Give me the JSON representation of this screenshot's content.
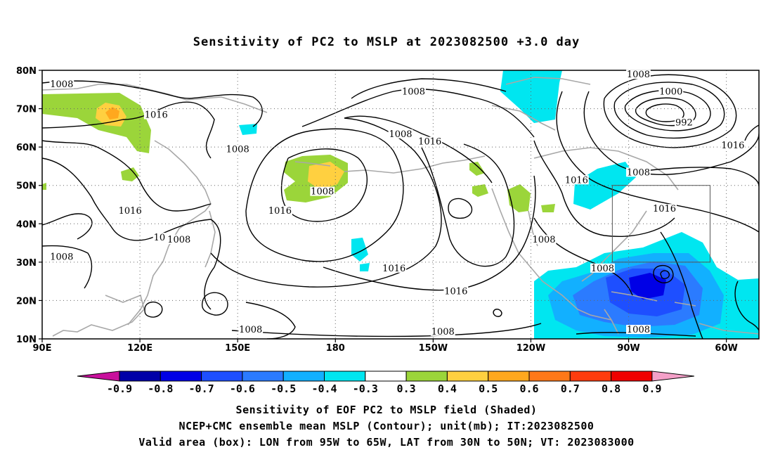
{
  "chart_data": {
    "type": "contour",
    "title": "Sensitivity of PC2 to MSLP at 2023082500 +3.0 day",
    "map": {
      "lon_range": [
        90,
        310
      ],
      "lat_range": [
        10,
        80
      ],
      "x_ticks": [
        {
          "lon": 90,
          "label": "90E"
        },
        {
          "lon": 120,
          "label": "120E"
        },
        {
          "lon": 150,
          "label": "150E"
        },
        {
          "lon": 180,
          "label": "180"
        },
        {
          "lon": 210,
          "label": "150W"
        },
        {
          "lon": 240,
          "label": "120W"
        },
        {
          "lon": 270,
          "label": "90W"
        },
        {
          "lon": 300,
          "label": "60W"
        }
      ],
      "y_ticks": [
        {
          "lat": 10,
          "label": "10N"
        },
        {
          "lat": 20,
          "label": "20N"
        },
        {
          "lat": 30,
          "label": "30N"
        },
        {
          "lat": 40,
          "label": "40N"
        },
        {
          "lat": 50,
          "label": "50N"
        },
        {
          "lat": 60,
          "label": "60N"
        },
        {
          "lat": 70,
          "label": "70N"
        },
        {
          "lat": 80,
          "label": "80N"
        }
      ],
      "grid": "dotted",
      "valid_box": {
        "lon": [
          265,
          295
        ],
        "lat": [
          30,
          50
        ]
      }
    },
    "contour_labels": [
      {
        "text": "1008",
        "lon": 96,
        "lat": 76
      },
      {
        "text": "1016",
        "lon": 125,
        "lat": 68
      },
      {
        "text": "1008",
        "lon": 150,
        "lat": 59
      },
      {
        "text": "1016",
        "lon": 117,
        "lat": 43
      },
      {
        "text": "10",
        "lon": 126,
        "lat": 36
      },
      {
        "text": "1008",
        "lon": 132,
        "lat": 35.5
      },
      {
        "text": "1008",
        "lon": 96,
        "lat": 31
      },
      {
        "text": "1008",
        "lon": 176,
        "lat": 48
      },
      {
        "text": "1016",
        "lon": 163,
        "lat": 43
      },
      {
        "text": "1008",
        "lon": 204,
        "lat": 74
      },
      {
        "text": "1008",
        "lon": 200,
        "lat": 63
      },
      {
        "text": "1016",
        "lon": 209,
        "lat": 61
      },
      {
        "text": "1016",
        "lon": 198,
        "lat": 28
      },
      {
        "text": "1016",
        "lon": 217,
        "lat": 22
      },
      {
        "text": "1008",
        "lon": 154,
        "lat": 12
      },
      {
        "text": "1008",
        "lon": 213,
        "lat": 11.5
      },
      {
        "text": "1016",
        "lon": 254,
        "lat": 51
      },
      {
        "text": "1008",
        "lon": 244,
        "lat": 35.5
      },
      {
        "text": "1008",
        "lon": 262,
        "lat": 28
      },
      {
        "text": "1008",
        "lon": 273,
        "lat": 78.5
      },
      {
        "text": "1000",
        "lon": 283,
        "lat": 74
      },
      {
        "text": "992",
        "lon": 287,
        "lat": 66
      },
      {
        "text": "1016",
        "lon": 302,
        "lat": 60
      },
      {
        "text": "1008",
        "lon": 273,
        "lat": 53
      },
      {
        "text": "1016",
        "lon": 281,
        "lat": 43.5
      },
      {
        "text": "1008",
        "lon": 273,
        "lat": 12
      }
    ],
    "colorbar": {
      "labels": [
        "-0.9",
        "-0.8",
        "-0.7",
        "-0.6",
        "-0.5",
        "-0.4",
        "-0.3",
        "0.3",
        "0.4",
        "0.5",
        "0.6",
        "0.7",
        "0.8",
        "0.9"
      ],
      "colors": [
        "#0000A8",
        "#0000E6",
        "#1E4FFF",
        "#2B7BFF",
        "#12B0FF",
        "#00E6F0",
        "#FFFFFF",
        "#9BD53A",
        "#FFD040",
        "#FFA81E",
        "#FF7818",
        "#FF3C0E",
        "#F00000"
      ],
      "low_color": "#C8109C",
      "high_color": "#F4A0C8"
    }
  },
  "footer": {
    "line1": "Sensitivity of EOF PC2 to MSLP field (Shaded)",
    "line2": "NCEP+CMC ensemble mean MSLP (Contour); unit(mb); IT:2023082500",
    "line3": "Valid area (box): LON from 95W to 65W, LAT from 30N to 50N; VT: 2023083000"
  }
}
